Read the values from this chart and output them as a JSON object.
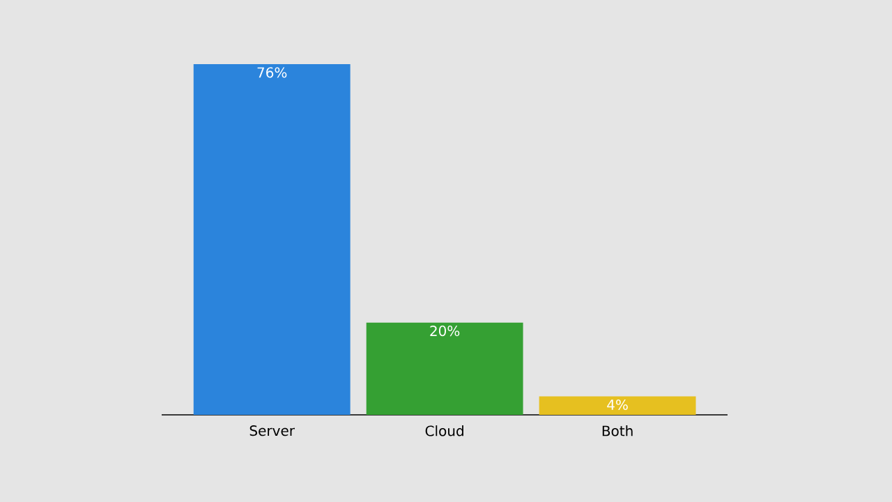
{
  "chart_data": {
    "type": "bar",
    "categories": [
      "Server",
      "Cloud",
      "Both"
    ],
    "values": [
      76,
      20,
      4
    ],
    "colors": [
      "#2b84dc",
      "#35a033",
      "#e6c020"
    ],
    "value_labels": [
      "76%",
      "20%",
      "4%"
    ]
  }
}
